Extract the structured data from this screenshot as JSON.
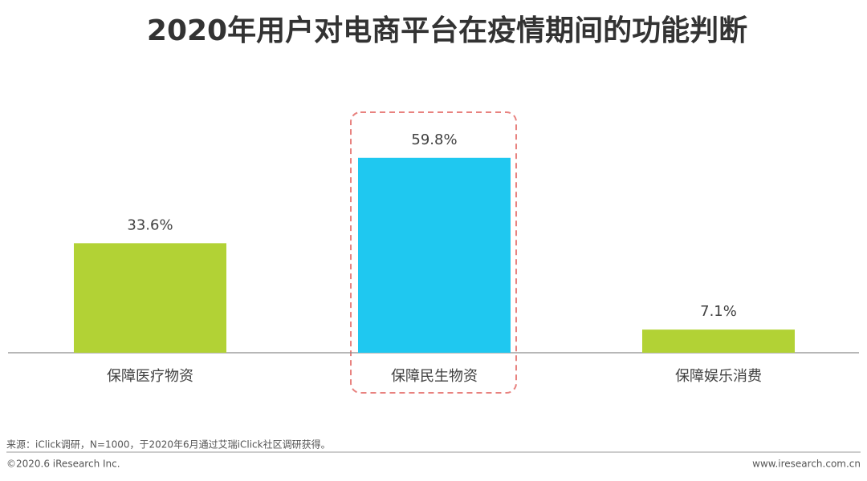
{
  "chart_data": {
    "type": "bar",
    "title": "2020年用户对电商平台在疫情期间的功能判断",
    "categories": [
      "保障医疗物资",
      "保障民生物资",
      "保障娱乐消费"
    ],
    "values": [
      33.6,
      59.8,
      7.1
    ],
    "value_labels": [
      "33.6%",
      "59.8%",
      "7.1%"
    ],
    "colors": [
      "#b2d235",
      "#1fc8f0",
      "#b2d235"
    ],
    "ylim": [
      0,
      60
    ]
  },
  "footer": {
    "source": "来源：iClick调研，N=1000，于2020年6月通过艾瑞iClick社区调研获得。",
    "copyright": "©2020.6 iResearch Inc.",
    "website": "www.iresearch.com.cn"
  }
}
